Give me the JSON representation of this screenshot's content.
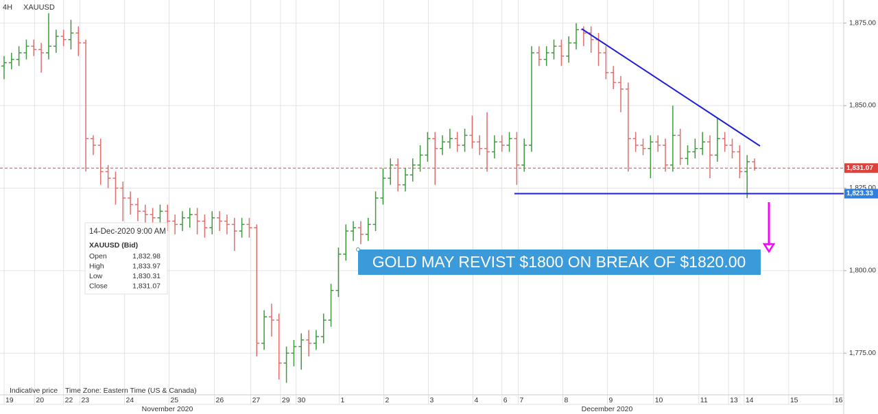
{
  "chart_data": {
    "type": "ohlc",
    "timeframe": "4H",
    "symbol": "XAUUSD",
    "open": [
      1862,
      1863,
      1864,
      1866,
      1868,
      1867,
      1866,
      1868,
      1871,
      1870,
      1872,
      1869,
      1840,
      1838,
      1830,
      1828,
      1825,
      1822,
      1820,
      1818,
      1817,
      1816,
      1818,
      1815,
      1814,
      1816,
      1817,
      1815,
      1813,
      1816,
      1815,
      1814,
      1812,
      1814,
      1813,
      1778,
      1786,
      1785,
      1772,
      1775,
      1777,
      1779,
      1778,
      1780,
      1785,
      1794,
      1805,
      1812,
      1813,
      1811,
      1814,
      1822,
      1828,
      1832,
      1826,
      1829,
      1832,
      1835,
      1840,
      1837,
      1839,
      1840,
      1838,
      1841,
      1839,
      1837,
      1836,
      1839,
      1838,
      1840,
      1832,
      1838,
      1866,
      1864,
      1866,
      1868,
      1865,
      1869,
      1873,
      1872,
      1870,
      1866,
      1860,
      1857,
      1855,
      1840,
      1838,
      1837,
      1839,
      1838,
      1832,
      1841,
      1834,
      1836,
      1837,
      1839,
      1835,
      1840,
      1838,
      1836,
      1830,
      1832.98
    ],
    "high": [
      1865,
      1866,
      1868,
      1870,
      1870,
      1869,
      1878,
      1873,
      1873,
      1876,
      1874,
      1870,
      1841,
      1840,
      1832,
      1830,
      1827,
      1824,
      1822,
      1820,
      1819,
      1820,
      1820,
      1817,
      1818,
      1819,
      1819,
      1817,
      1818,
      1818,
      1817,
      1816,
      1816,
      1816,
      1814,
      1788,
      1790,
      1787,
      1777,
      1779,
      1781,
      1782,
      1782,
      1787,
      1796,
      1807,
      1814,
      1815,
      1815,
      1816,
      1824,
      1831,
      1834,
      1834,
      1831,
      1834,
      1838,
      1842,
      1842,
      1841,
      1843,
      1842,
      1843,
      1847,
      1841,
      1848,
      1841,
      1841,
      1842,
      1842,
      1840,
      1868,
      1868,
      1868,
      1870,
      1870,
      1871,
      1875,
      1874,
      1874,
      1872,
      1868,
      1862,
      1859,
      1857,
      1842,
      1840,
      1841,
      1841,
      1840,
      1850,
      1843,
      1838,
      1840,
      1842,
      1841,
      1846,
      1842,
      1840,
      1838,
      1835,
      1833.97
    ],
    "low": [
      1858,
      1861,
      1862,
      1864,
      1865,
      1860,
      1864,
      1866,
      1868,
      1867,
      1865,
      1830,
      1835,
      1826,
      1825,
      1820,
      1815,
      1817,
      1815,
      1814,
      1813,
      1814,
      1812,
      1811,
      1812,
      1813,
      1811,
      1810,
      1811,
      1812,
      1811,
      1806,
      1810,
      1810,
      1774,
      1776,
      1780,
      1767,
      1766,
      1771,
      1770,
      1774,
      1776,
      1778,
      1783,
      1792,
      1803,
      1809,
      1808,
      1809,
      1812,
      1820,
      1826,
      1824,
      1824,
      1827,
      1830,
      1833,
      1826,
      1835,
      1837,
      1836,
      1836,
      1837,
      1835,
      1830,
      1834,
      1836,
      1836,
      1826,
      1830,
      1836,
      1862,
      1862,
      1864,
      1862,
      1863,
      1867,
      1868,
      1866,
      1862,
      1858,
      1855,
      1848,
      1830,
      1836,
      1835,
      1828,
      1836,
      1830,
      1830,
      1832,
      1832,
      1834,
      1835,
      1828,
      1833,
      1836,
      1834,
      1828,
      1822,
      1830.31
    ],
    "close": [
      1863,
      1864,
      1866,
      1868,
      1867,
      1866,
      1868,
      1871,
      1870,
      1872,
      1869,
      1840,
      1838,
      1830,
      1828,
      1825,
      1822,
      1820,
      1818,
      1817,
      1816,
      1818,
      1815,
      1814,
      1816,
      1817,
      1815,
      1813,
      1816,
      1815,
      1814,
      1812,
      1814,
      1813,
      1778,
      1786,
      1785,
      1772,
      1775,
      1777,
      1779,
      1778,
      1780,
      1785,
      1794,
      1805,
      1812,
      1813,
      1811,
      1814,
      1822,
      1828,
      1832,
      1826,
      1829,
      1832,
      1835,
      1840,
      1837,
      1839,
      1840,
      1838,
      1841,
      1839,
      1837,
      1836,
      1839,
      1838,
      1840,
      1832,
      1838,
      1866,
      1864,
      1866,
      1868,
      1865,
      1869,
      1873,
      1872,
      1870,
      1866,
      1860,
      1857,
      1855,
      1840,
      1838,
      1837,
      1839,
      1838,
      1832,
      1841,
      1834,
      1836,
      1837,
      1839,
      1835,
      1840,
      1838,
      1836,
      1830,
      1833,
      1831.07
    ],
    "up_color": "#3d9a3d",
    "down_color": "#e36c6c",
    "xlim": [
      -0.55,
      113
    ],
    "xticks": [
      {
        "value": 0,
        "label": "19"
      },
      {
        "value": 4.1,
        "label": "20"
      },
      {
        "value": 8.0,
        "label": "22"
      },
      {
        "value": 10.2,
        "label": "23"
      },
      {
        "value": 16.2,
        "label": "24"
      },
      {
        "value": 22.2,
        "label": "25"
      },
      {
        "value": 28.3,
        "label": "26"
      },
      {
        "value": 33.2,
        "label": "27"
      },
      {
        "value": 37.2,
        "label": "29"
      },
      {
        "value": 39.3,
        "label": "30"
      },
      {
        "value": 45.1,
        "label": "1"
      },
      {
        "value": 51.1,
        "label": "2"
      },
      {
        "value": 57.1,
        "label": "3"
      },
      {
        "value": 63.1,
        "label": "4"
      },
      {
        "value": 67.0,
        "label": "6"
      },
      {
        "value": 69.2,
        "label": "7"
      },
      {
        "value": 75.2,
        "label": "8"
      },
      {
        "value": 81.2,
        "label": "9"
      },
      {
        "value": 87.4,
        "label": "10"
      },
      {
        "value": 93.5,
        "label": "11"
      },
      {
        "value": 97.5,
        "label": "13"
      },
      {
        "value": 99.6,
        "label": "14"
      },
      {
        "value": 105.6,
        "label": "15"
      },
      {
        "value": 111.6,
        "label": "16"
      }
    ],
    "months": [
      "November 2020",
      "December 2020"
    ],
    "ylim": [
      1763,
      1882
    ],
    "yticks": [
      {
        "value": 1775,
        "label": "1,775.00"
      },
      {
        "value": 1800,
        "label": "1,800.00"
      },
      {
        "value": 1825,
        "label": "1,825.00"
      },
      {
        "value": 1850,
        "label": "1,850.00"
      },
      {
        "value": 1875,
        "label": "1,875.00"
      }
    ],
    "grid": true,
    "last_price": {
      "value": 1831.07,
      "label": "1,831.07",
      "color": "#e0403a"
    },
    "support_level": {
      "value": 1823.33,
      "label": "1,823.33",
      "color": "#1f1fd6"
    },
    "annotation": "GOLD MAY REVIST $1800 ON BREAK OF $1820.00",
    "tooltip": {
      "date": "14-Dec-2020 9:00 AM",
      "symbol": "XAUUSD (Bid)",
      "rows": [
        [
          "Open",
          "1,832.98"
        ],
        [
          "High",
          "1,833.97"
        ],
        [
          "Low",
          "1,830.31"
        ],
        [
          "Close",
          "1,831.07"
        ]
      ]
    },
    "footer": [
      "Indicative price",
      "Time Zone: Eastern Time (US & Canada)"
    ]
  }
}
